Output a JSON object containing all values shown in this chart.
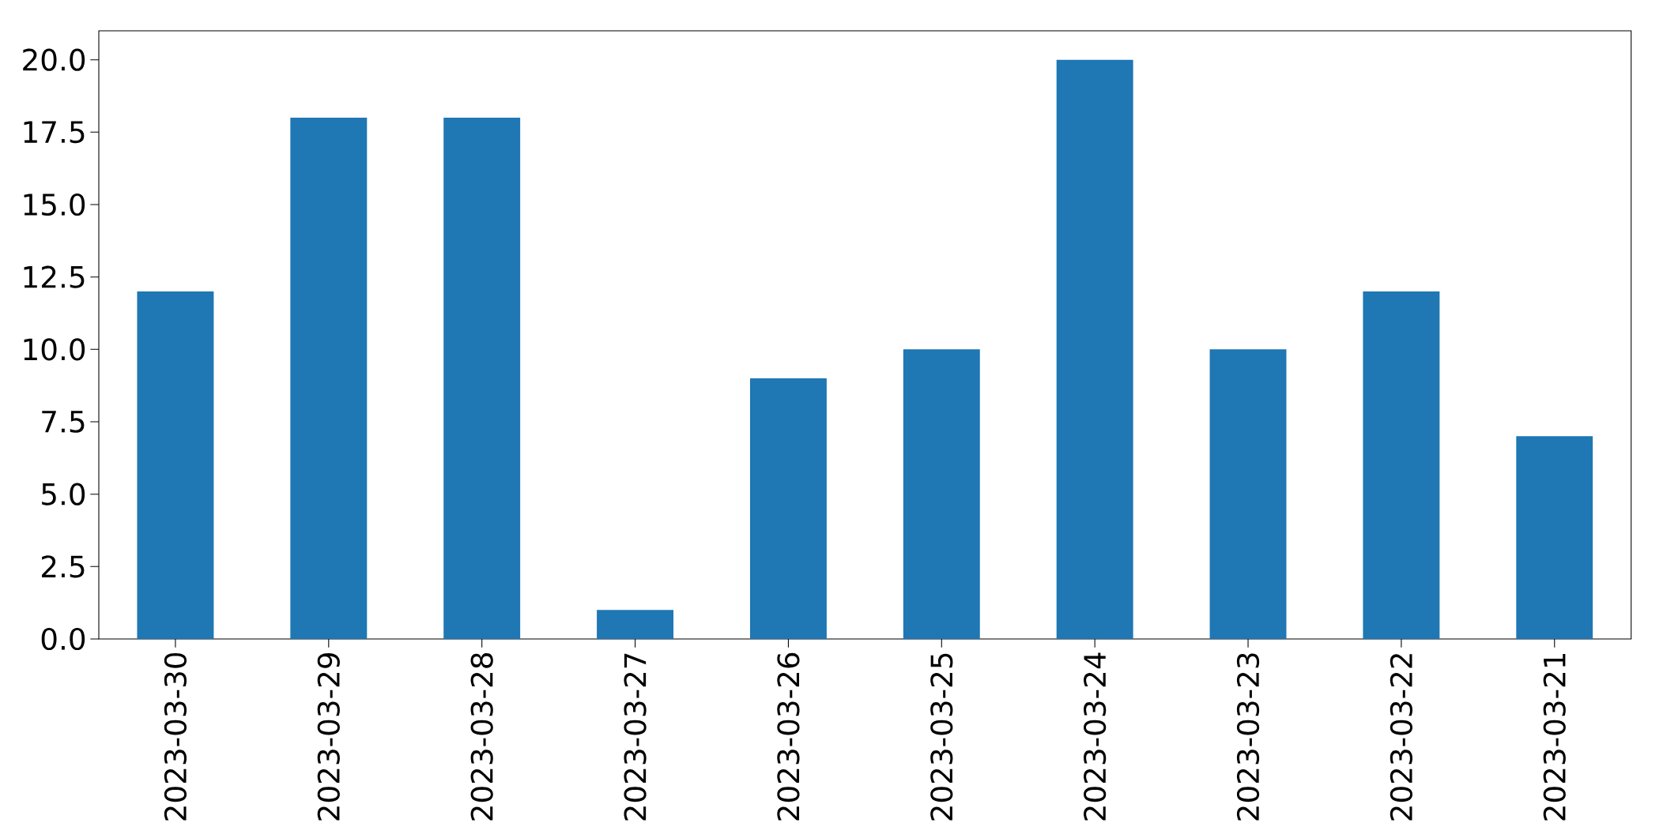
{
  "chart_data": {
    "type": "bar",
    "categories": [
      "2023-03-30",
      "2023-03-29",
      "2023-03-28",
      "2023-03-27",
      "2023-03-26",
      "2023-03-25",
      "2023-03-24",
      "2023-03-23",
      "2023-03-22",
      "2023-03-21"
    ],
    "values": [
      12,
      18,
      18,
      1,
      9,
      10,
      20,
      10,
      12,
      7
    ],
    "color": "#1f77b4",
    "ylim": [
      0,
      21
    ],
    "yticks": [
      {
        "value": 0,
        "label": "0.0"
      },
      2.5,
      {
        "value": 5,
        "label": "5.0"
      },
      7.5,
      {
        "value": 10,
        "label": "10.0"
      },
      12.5,
      {
        "value": 15,
        "label": "15.0"
      },
      17.5,
      {
        "value": 20,
        "label": "20.0"
      }
    ]
  }
}
